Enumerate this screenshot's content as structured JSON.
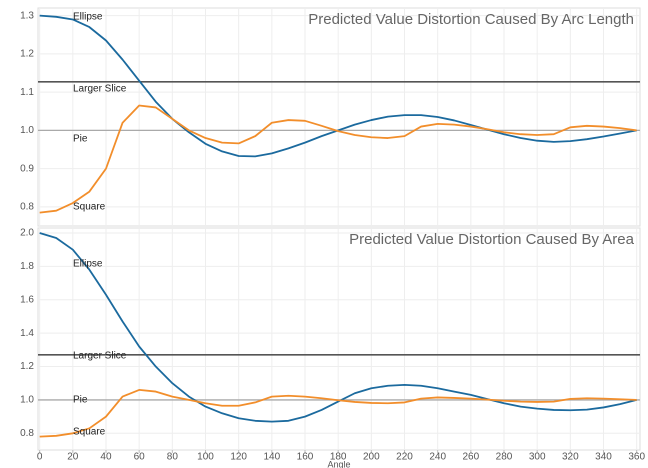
{
  "chart_data": [
    {
      "type": "line",
      "title": "Predicted Value Distortion Caused By Arc Length",
      "x": [
        0,
        10,
        20,
        30,
        40,
        50,
        60,
        70,
        80,
        90,
        100,
        110,
        120,
        130,
        140,
        150,
        160,
        170,
        180,
        190,
        200,
        210,
        220,
        230,
        240,
        250,
        260,
        270,
        280,
        290,
        300,
        310,
        320,
        330,
        340,
        350,
        360
      ],
      "xlim": [
        -1,
        362
      ],
      "ylim": [
        0.75,
        1.32
      ],
      "yticks": [
        0.8,
        0.9,
        {
          "value": 1,
          "label": "1.0"
        },
        1.1,
        1.2,
        1.3
      ],
      "grid": true,
      "series": [
        {
          "name": "Ellipse",
          "color": "#1b6a9e",
          "values": [
            1.3,
            1.297,
            1.29,
            1.27,
            1.235,
            1.185,
            1.13,
            1.075,
            1.03,
            0.995,
            0.965,
            0.945,
            0.933,
            0.932,
            0.94,
            0.953,
            0.968,
            0.985,
            1.0,
            1.015,
            1.027,
            1.036,
            1.04,
            1.04,
            1.035,
            1.026,
            1.014,
            1.002,
            0.99,
            0.98,
            0.973,
            0.97,
            0.972,
            0.977,
            0.984,
            0.992,
            1.0
          ]
        },
        {
          "name": "Square",
          "color": "#f28e2b",
          "values": [
            0.785,
            0.79,
            0.81,
            0.84,
            0.9,
            1.02,
            1.065,
            1.06,
            1.03,
            1.0,
            0.98,
            0.968,
            0.966,
            0.985,
            1.02,
            1.027,
            1.025,
            1.012,
            0.998,
            0.988,
            0.982,
            0.98,
            0.985,
            1.01,
            1.017,
            1.015,
            1.01,
            1.003,
            0.995,
            0.99,
            0.988,
            0.99,
            1.008,
            1.012,
            1.01,
            1.006,
            1.0
          ]
        }
      ],
      "reference_lines": [
        {
          "name": "Larger Slice",
          "value": 1.127,
          "color": "#555555"
        },
        {
          "name": "Pie",
          "value": 1.0,
          "color": "#aaaaaa"
        }
      ]
    },
    {
      "type": "line",
      "title": "Predicted Value Distortion Caused By Area",
      "x": [
        0,
        10,
        20,
        30,
        40,
        50,
        60,
        70,
        80,
        90,
        100,
        110,
        120,
        130,
        140,
        150,
        160,
        170,
        180,
        190,
        200,
        210,
        220,
        230,
        240,
        250,
        260,
        270,
        280,
        290,
        300,
        310,
        320,
        330,
        340,
        350,
        360
      ],
      "xlabel": "Angle",
      "xlim": [
        -1,
        362
      ],
      "ylim": [
        0.7,
        2.03
      ],
      "xticks": [
        0,
        20,
        40,
        60,
        80,
        100,
        120,
        140,
        160,
        180,
        200,
        220,
        240,
        260,
        280,
        300,
        320,
        340,
        360
      ],
      "yticks": [
        0.8,
        {
          "value": 1,
          "label": "1.0"
        },
        1.2,
        1.4,
        1.6,
        1.8,
        {
          "value": 2,
          "label": "2.0"
        }
      ],
      "grid": true,
      "series": [
        {
          "name": "Ellipse",
          "color": "#1b6a9e",
          "values": [
            2.0,
            1.97,
            1.9,
            1.78,
            1.63,
            1.47,
            1.32,
            1.2,
            1.1,
            1.02,
            0.96,
            0.92,
            0.89,
            0.875,
            0.87,
            0.875,
            0.9,
            0.94,
            0.99,
            1.04,
            1.07,
            1.085,
            1.09,
            1.085,
            1.07,
            1.05,
            1.03,
            1.005,
            0.98,
            0.96,
            0.948,
            0.94,
            0.938,
            0.942,
            0.955,
            0.975,
            1.0
          ]
        },
        {
          "name": "Square",
          "color": "#f28e2b",
          "values": [
            0.78,
            0.785,
            0.8,
            0.83,
            0.9,
            1.02,
            1.06,
            1.05,
            1.02,
            1.0,
            0.98,
            0.965,
            0.965,
            0.985,
            1.02,
            1.025,
            1.02,
            1.01,
            0.998,
            0.988,
            0.982,
            0.98,
            0.985,
            1.008,
            1.015,
            1.012,
            1.008,
            1.002,
            0.995,
            0.99,
            0.988,
            0.99,
            1.006,
            1.01,
            1.008,
            1.004,
            1.0
          ]
        }
      ],
      "reference_lines": [
        {
          "name": "Larger Slice",
          "value": 1.27,
          "color": "#555555"
        },
        {
          "name": "Pie",
          "value": 1.0,
          "color": "#aaaaaa"
        }
      ]
    }
  ]
}
